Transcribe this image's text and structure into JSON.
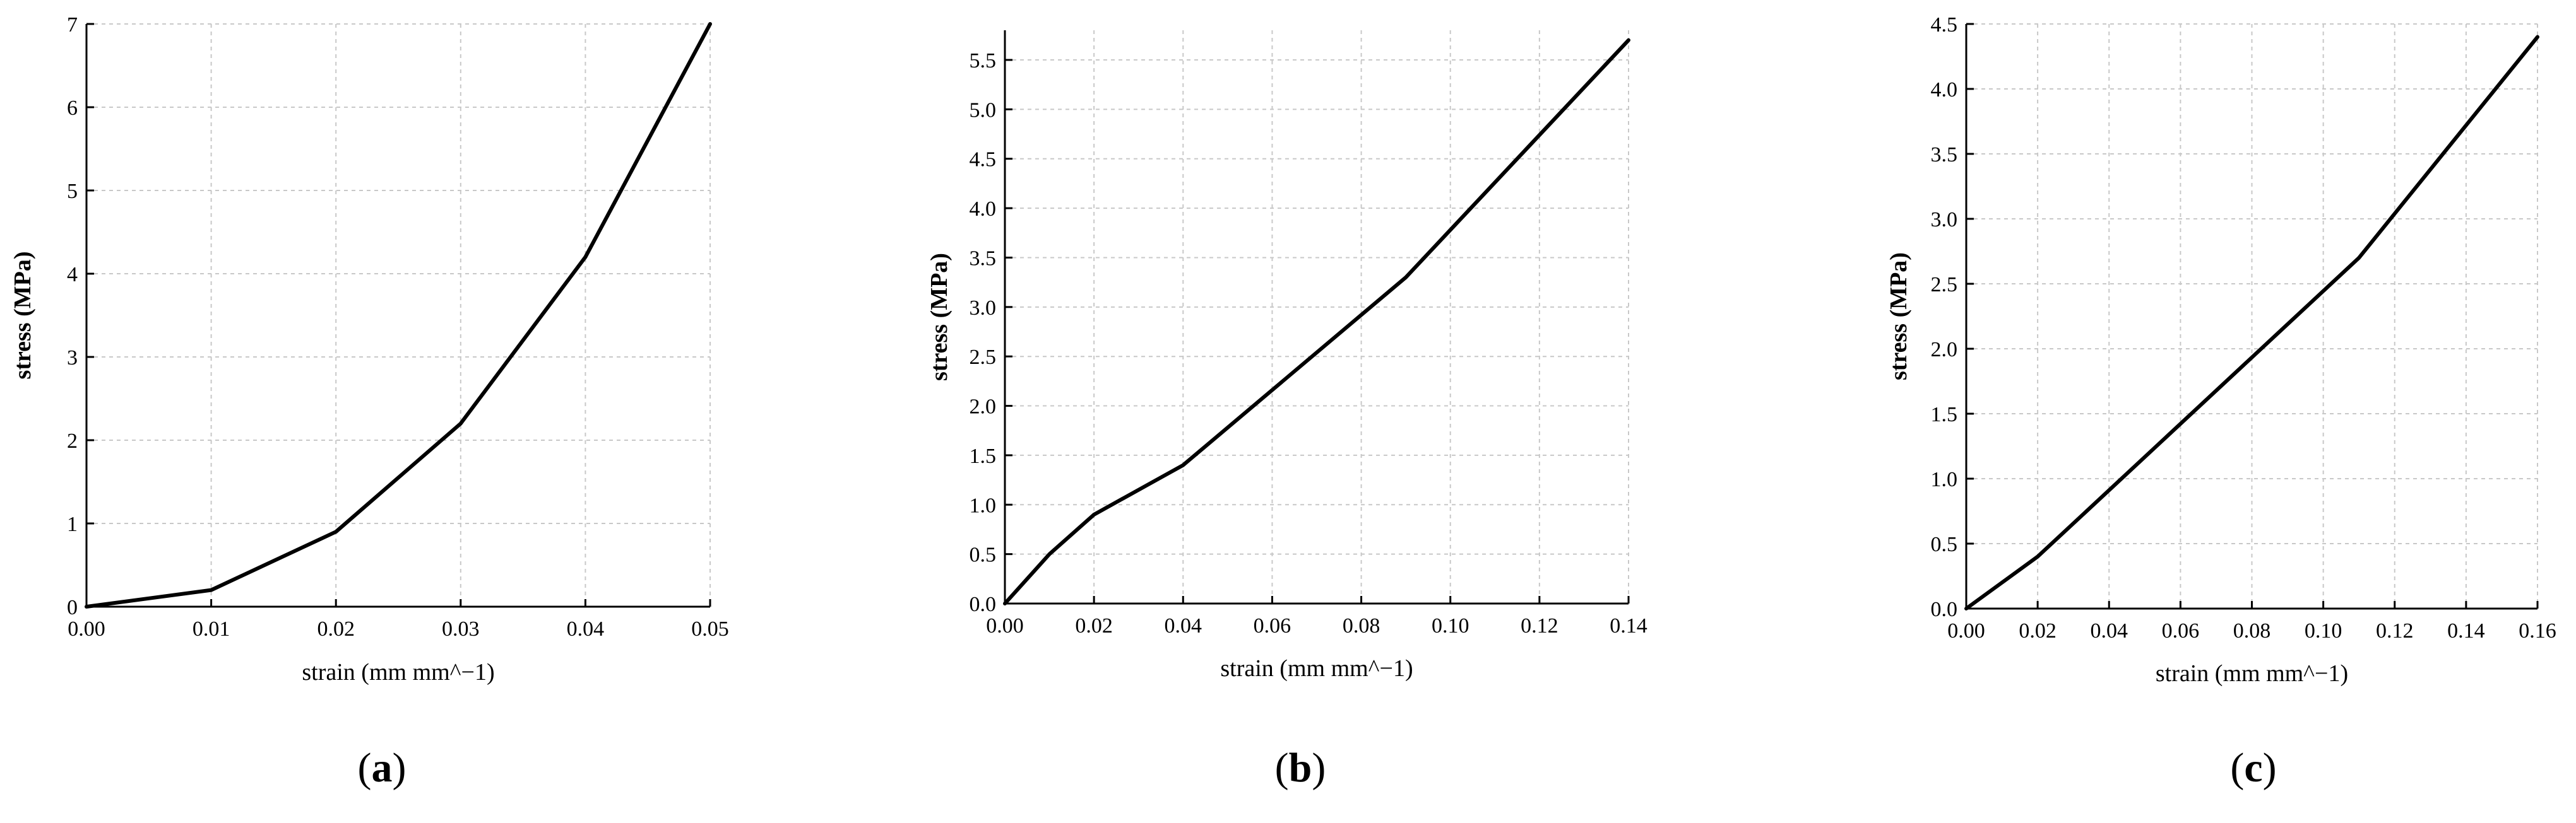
{
  "chart_data": [
    {
      "type": "line",
      "panel_label": "a",
      "xlabel": "strain (mm mm^−1)",
      "ylabel": "stress (MPa)",
      "xlim": [
        0,
        0.05
      ],
      "ylim": [
        0,
        7
      ],
      "x_ticks": [
        "0.00",
        "0.01",
        "0.02",
        "0.03",
        "0.04",
        "0.05"
      ],
      "y_ticks": [
        "0",
        "1",
        "2",
        "3",
        "4",
        "5",
        "6",
        "7"
      ],
      "grid": true,
      "series": [
        {
          "x": [
            0,
            0.01,
            0.02,
            0.03,
            0.04,
            0.05
          ],
          "y": [
            0,
            0.2,
            0.9,
            2.2,
            4.2,
            7.0
          ]
        }
      ]
    },
    {
      "type": "line",
      "panel_label": "b",
      "xlabel": "strain (mm mm^−1)",
      "ylabel": "stress (MPa)",
      "xlim": [
        0,
        0.14
      ],
      "ylim": [
        0,
        5.8
      ],
      "x_ticks": [
        "0.00",
        "0.02",
        "0.04",
        "0.06",
        "0.08",
        "0.10",
        "0.12",
        "0.14"
      ],
      "y_ticks": [
        "0.0",
        "0.5",
        "1.0",
        "1.5",
        "2.0",
        "2.5",
        "3.0",
        "3.5",
        "4.0",
        "4.5",
        "5.0",
        "5.5"
      ],
      "grid": true,
      "series": [
        {
          "x": [
            0,
            0.01,
            0.02,
            0.04,
            0.09,
            0.14
          ],
          "y": [
            0,
            0.5,
            0.9,
            1.4,
            3.3,
            5.7
          ]
        }
      ]
    },
    {
      "type": "line",
      "panel_label": "c",
      "xlabel": "strain (mm mm^−1)",
      "ylabel": "stress (MPa)",
      "xlim": [
        0,
        0.16
      ],
      "ylim": [
        0,
        4.5
      ],
      "x_ticks": [
        "0.00",
        "0.02",
        "0.04",
        "0.06",
        "0.08",
        "0.10",
        "0.12",
        "0.14",
        "0.16"
      ],
      "y_ticks": [
        "0.0",
        "0.5",
        "1.0",
        "1.5",
        "2.0",
        "2.5",
        "3.0",
        "3.5",
        "4.0",
        "4.5"
      ],
      "grid": true,
      "series": [
        {
          "x": [
            0,
            0.02,
            0.11,
            0.16
          ],
          "y": [
            0,
            0.4,
            2.7,
            4.4
          ]
        }
      ]
    }
  ]
}
